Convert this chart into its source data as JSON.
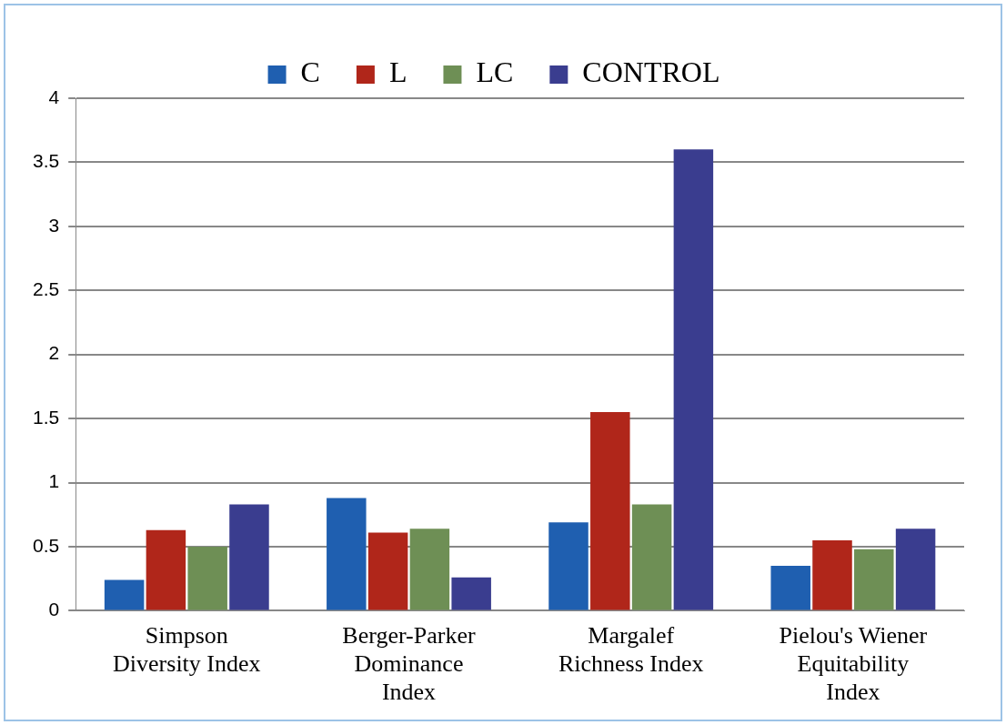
{
  "chart_data": {
    "type": "bar",
    "categories": [
      "Simpson\nDiversity Index",
      "Berger-Parker\nDominance\nIndex",
      "Margalef\nRichness Index",
      "Pielou's Wiener\nEquitability\nIndex"
    ],
    "series": [
      {
        "name": "C",
        "color": "#1f5fb0",
        "values": [
          0.24,
          0.88,
          0.69,
          0.35
        ]
      },
      {
        "name": "L",
        "color": "#b0261a",
        "values": [
          0.63,
          0.61,
          1.55,
          0.55
        ]
      },
      {
        "name": "LC",
        "color": "#6e8f55",
        "values": [
          0.5,
          0.64,
          0.83,
          0.48
        ]
      },
      {
        "name": "CONTROL",
        "color": "#3a3d8f",
        "values": [
          0.83,
          0.26,
          3.6,
          0.64
        ]
      }
    ],
    "ylim": [
      0,
      4
    ],
    "yticks": [
      0,
      0.5,
      1,
      1.5,
      2,
      2.5,
      3,
      3.5,
      4
    ],
    "grid": "y",
    "legend": "top"
  }
}
